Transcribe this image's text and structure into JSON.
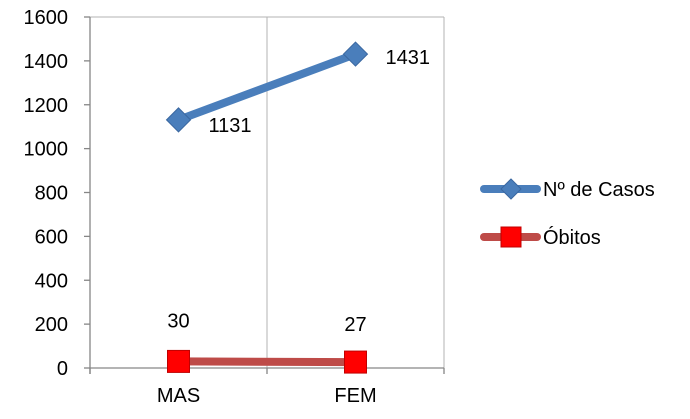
{
  "chart_data": {
    "type": "line",
    "categories": [
      "MAS",
      "FEM"
    ],
    "series": [
      {
        "name": "Nº de Casos",
        "values": [
          1131,
          1431
        ],
        "color": "#4a7ebb",
        "marker": "diamond",
        "data_labels": [
          "1131",
          "1431"
        ]
      },
      {
        "name": "Óbitos",
        "values": [
          30,
          27
        ],
        "color": "#be4b48",
        "marker_color": "#ff0000",
        "marker": "square",
        "data_labels": [
          "30",
          "27"
        ]
      }
    ],
    "title": "",
    "xlabel": "",
    "ylabel": "",
    "ylim": [
      0,
      1600
    ],
    "yticks": [
      "0",
      "200",
      "400",
      "600",
      "800",
      "1000",
      "1200",
      "1400",
      "1600"
    ],
    "grid": "vertical",
    "legend": "right"
  }
}
